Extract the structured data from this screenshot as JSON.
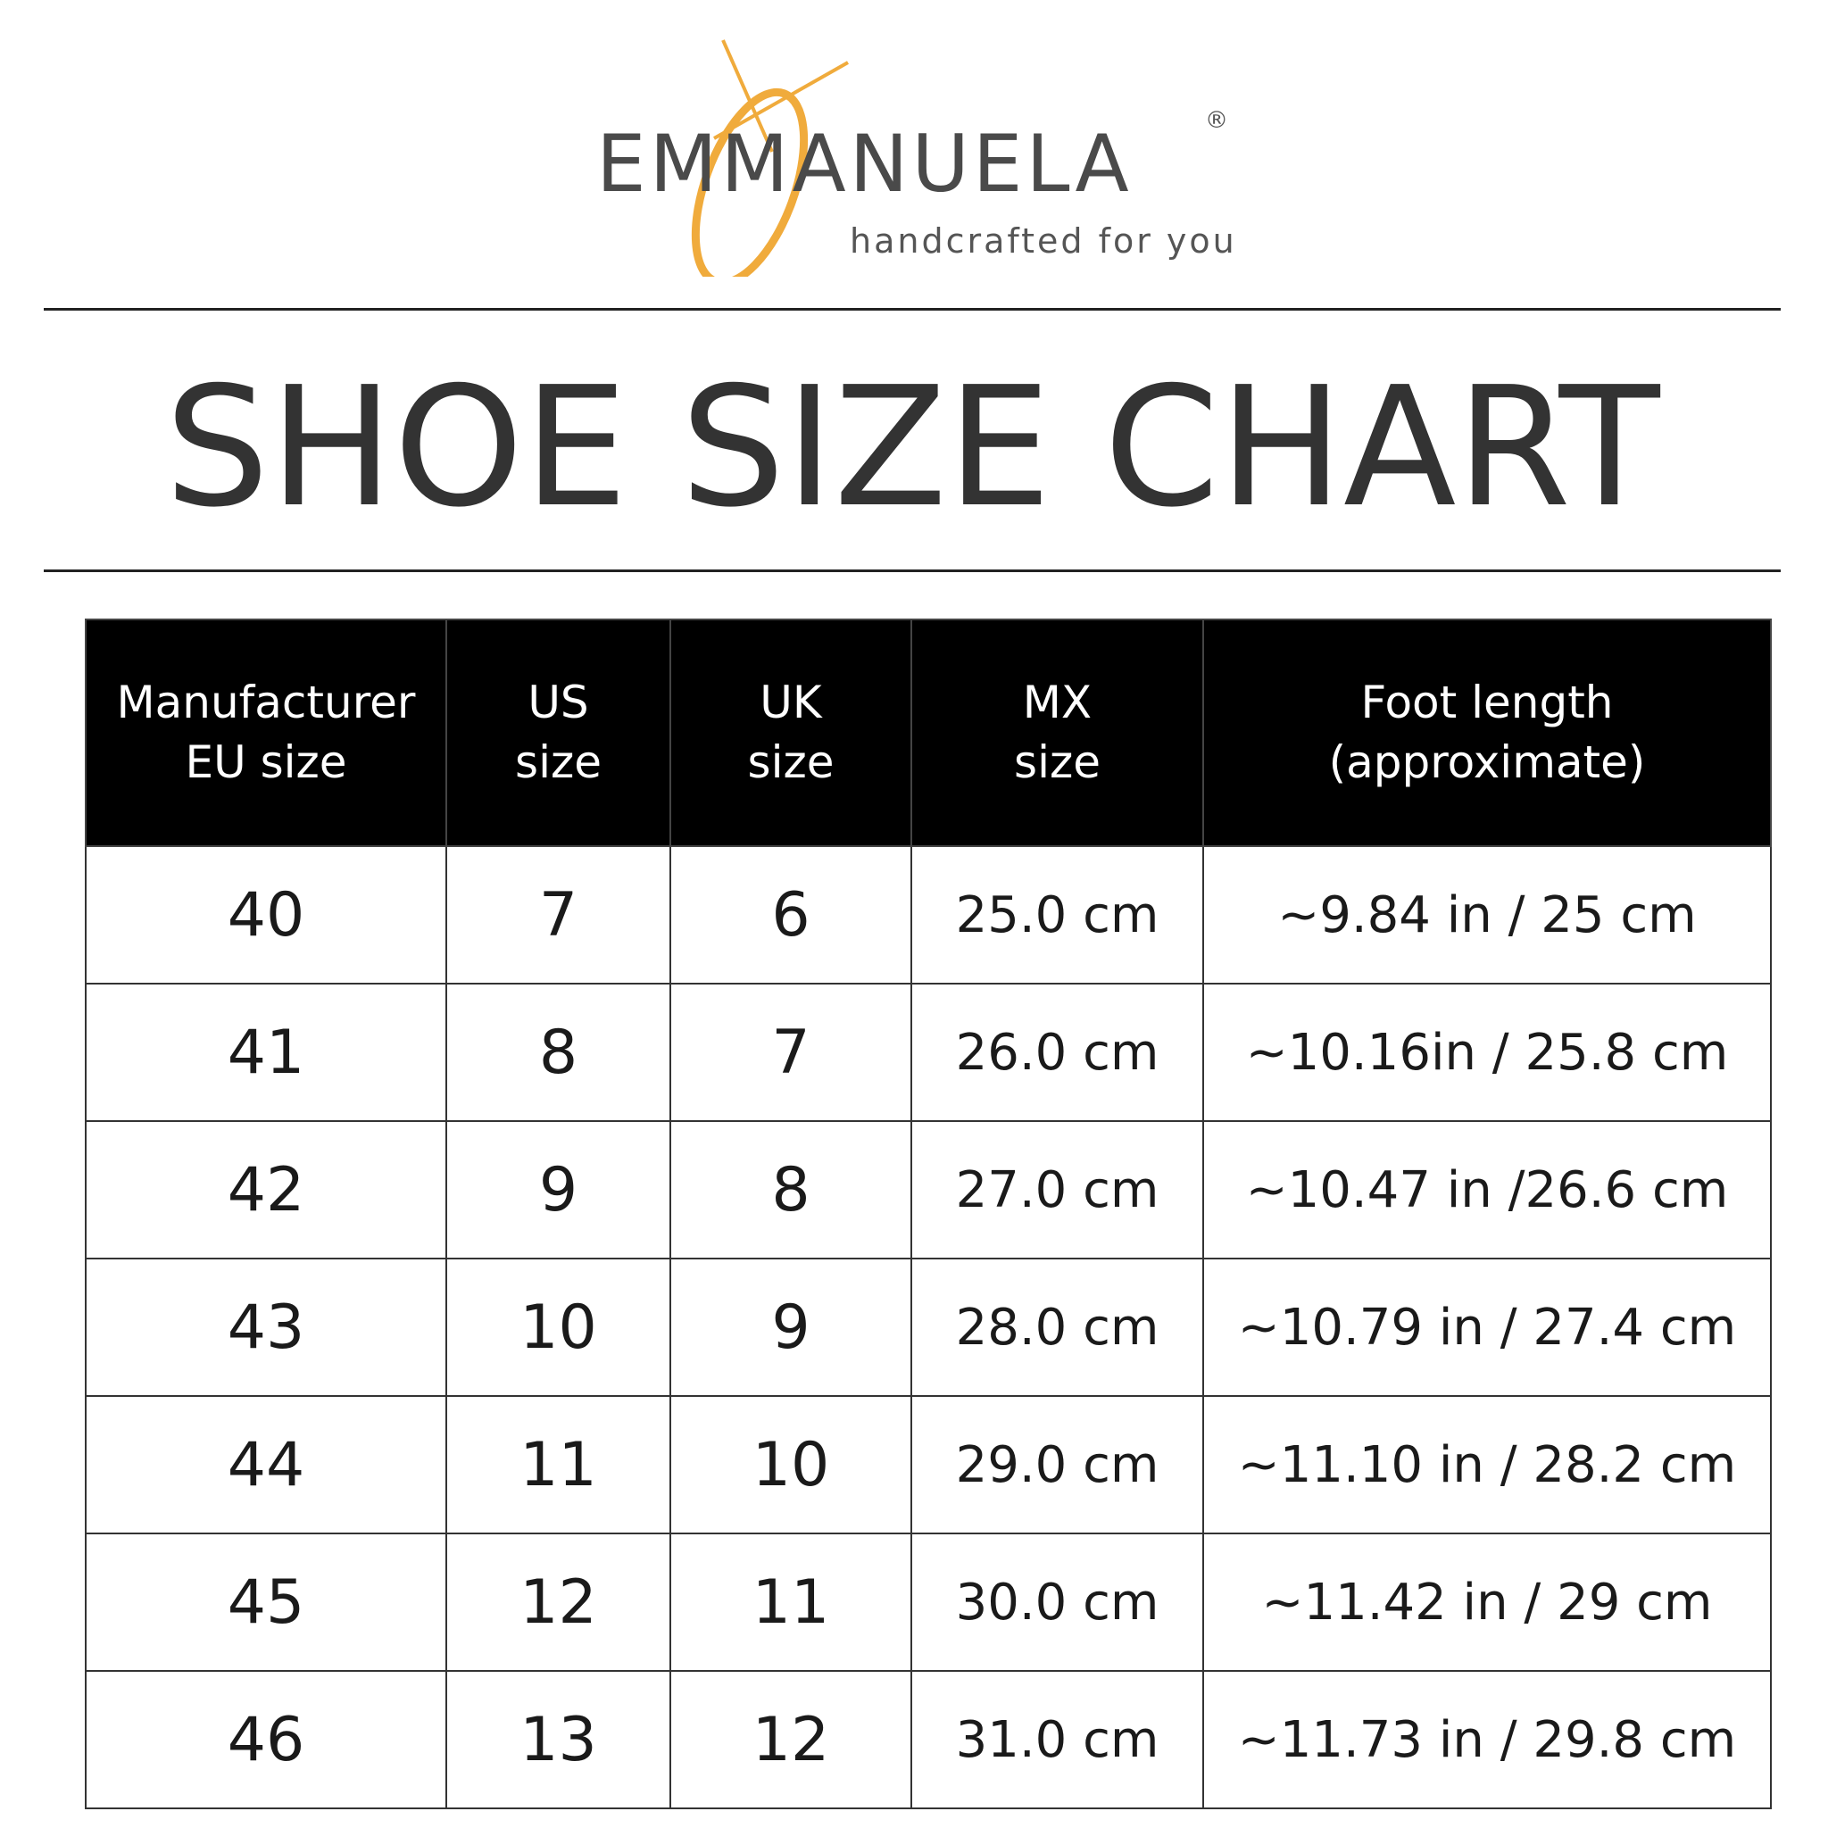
{
  "logo": {
    "brand": "EMMANUELA",
    "registered": "®",
    "tagline": "handcrafted for you",
    "accent_color": "#f0ab3c",
    "text_color": "#4a4a4a"
  },
  "title": "SHOE SIZE CHART",
  "table": {
    "headers": [
      [
        "Manufacturer",
        "EU size"
      ],
      [
        "US",
        "size"
      ],
      [
        "UK",
        "size"
      ],
      [
        "MX",
        "size"
      ],
      [
        "Foot length",
        "(approximate)"
      ]
    ],
    "rows": [
      [
        "40",
        "7",
        "6",
        "25.0 cm",
        "~9.84 in / 25 cm"
      ],
      [
        "41",
        "8",
        "7",
        "26.0 cm",
        "~10.16in / 25.8 cm"
      ],
      [
        "42",
        "9",
        "8",
        "27.0 cm",
        "~10.47 in /26.6 cm"
      ],
      [
        "43",
        "10",
        "9",
        "28.0 cm",
        "~10.79 in / 27.4 cm"
      ],
      [
        "44",
        "11",
        "10",
        "29.0 cm",
        "~11.10 in / 28.2 cm"
      ],
      [
        "45",
        "12",
        "11",
        "30.0 cm",
        "~11.42 in / 29 cm"
      ],
      [
        "46",
        "13",
        "12",
        "31.0 cm",
        "~11.73 in / 29.8 cm"
      ]
    ]
  }
}
